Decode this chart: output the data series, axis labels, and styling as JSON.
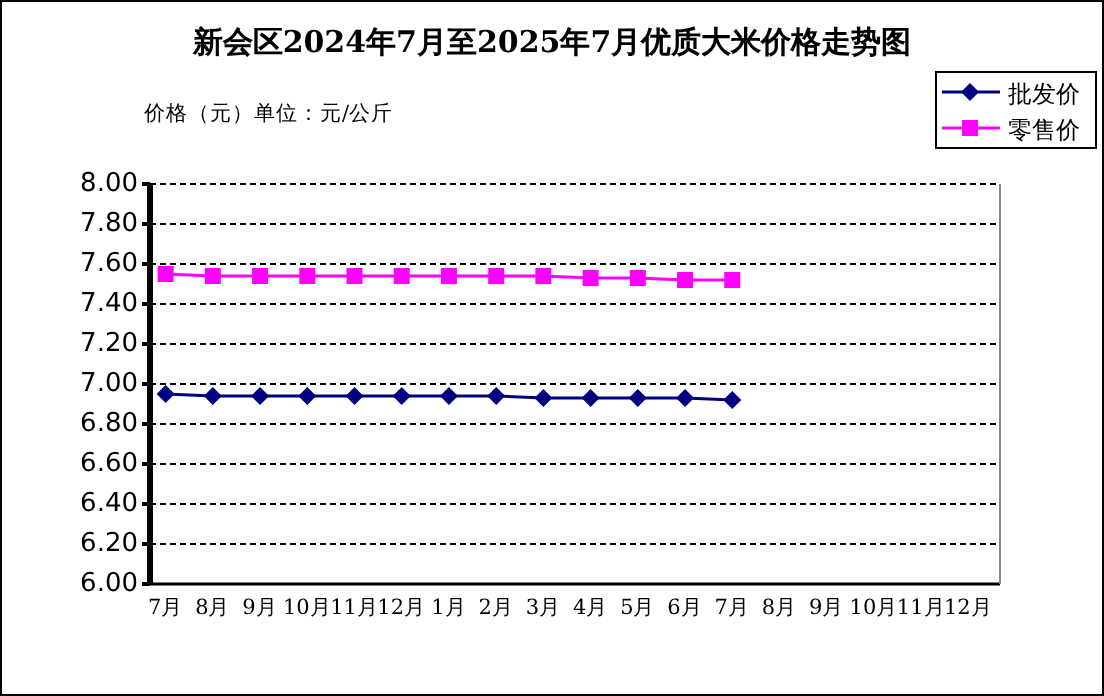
{
  "chart_data": {
    "type": "line",
    "title": "新会区2024年7月至2025年7月优质大米价格走势图",
    "ylabel": "价格（元）单位：元/公斤",
    "categories": [
      "7月",
      "8月",
      "9月",
      "10月",
      "11月",
      "12月",
      "1月",
      "2月",
      "3月",
      "4月",
      "5月",
      "6月",
      "7月",
      "8月",
      "9月",
      "10月",
      "11月",
      "12月"
    ],
    "series": [
      {
        "name": "批发价",
        "color": "#000080",
        "marker": "diamond",
        "values": [
          6.95,
          6.94,
          6.94,
          6.94,
          6.94,
          6.94,
          6.94,
          6.94,
          6.93,
          6.93,
          6.93,
          6.93,
          6.92,
          null,
          null,
          null,
          null,
          null
        ]
      },
      {
        "name": "零售价",
        "color": "#ff00ff",
        "marker": "square",
        "values": [
          7.55,
          7.54,
          7.54,
          7.54,
          7.54,
          7.54,
          7.54,
          7.54,
          7.54,
          7.53,
          7.53,
          7.52,
          7.52,
          null,
          null,
          null,
          null,
          null
        ]
      }
    ],
    "ylim": [
      6.0,
      8.0
    ],
    "yticks": [
      {
        "value": 6,
        "label": "6.00"
      },
      {
        "value": 6.2,
        "label": "6.20"
      },
      {
        "value": 6.4,
        "label": "6.40"
      },
      {
        "value": 6.6,
        "label": "6.60"
      },
      {
        "value": 6.8,
        "label": "6.80"
      },
      {
        "value": 7,
        "label": "7.00"
      },
      {
        "value": 7.2,
        "label": "7.20"
      },
      {
        "value": 7.4,
        "label": "7.40"
      },
      {
        "value": 7.6,
        "label": "7.60"
      },
      {
        "value": 7.8,
        "label": "7.80"
      },
      {
        "value": 8,
        "label": "8.00"
      }
    ],
    "grid": "y",
    "legend": "top right"
  }
}
